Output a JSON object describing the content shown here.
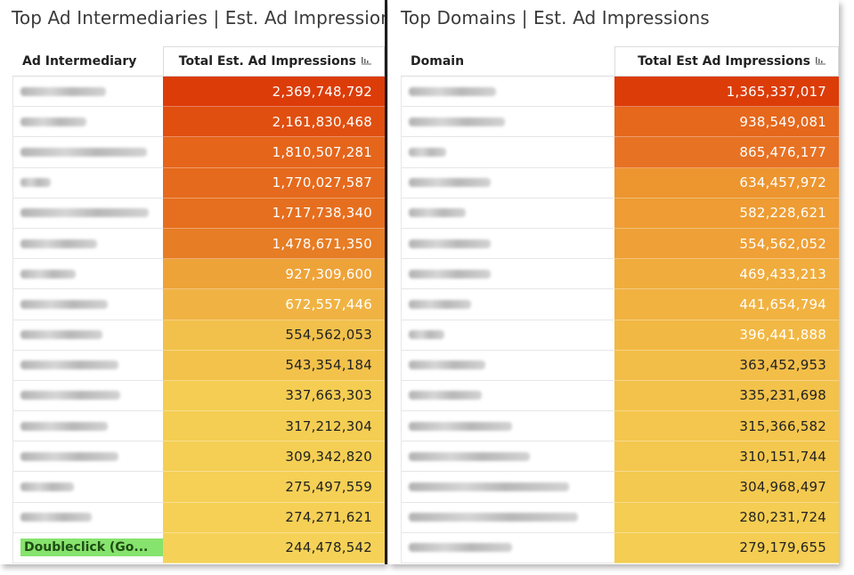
{
  "left_panel": {
    "title": "Top Ad Intermediaries | Est. Ad Impressions",
    "col_name": "Ad Intermediary",
    "col_value": "Total Est. Ad Impressions",
    "rows": [
      {
        "name": "",
        "value": "2,369,748,792",
        "color": "#dc3c08",
        "text_color": "#ffffff"
      },
      {
        "name": "",
        "value": "2,161,830,468",
        "color": "#e04f10",
        "text_color": "#ffffff"
      },
      {
        "name": "",
        "value": "1,810,507,281",
        "color": "#e5651b",
        "text_color": "#ffffff"
      },
      {
        "name": "",
        "value": "1,770,027,587",
        "color": "#e56a1d",
        "text_color": "#ffffff"
      },
      {
        "name": "",
        "value": "1,717,738,340",
        "color": "#e66f1f",
        "text_color": "#ffffff"
      },
      {
        "name": "",
        "value": "1,478,671,350",
        "color": "#e77d25",
        "text_color": "#ffffff"
      },
      {
        "name": "",
        "value": "927,309,600",
        "color": "#eea339",
        "text_color": "#ffffff"
      },
      {
        "name": "",
        "value": "672,557,446",
        "color": "#f0b343",
        "text_color": "#ffffff"
      },
      {
        "name": "",
        "value": "554,562,053",
        "color": "#f2c14b",
        "text_color": "#222222"
      },
      {
        "name": "",
        "value": "543,354,184",
        "color": "#f2c24b",
        "text_color": "#222222"
      },
      {
        "name": "",
        "value": "337,663,303",
        "color": "#f4cd52",
        "text_color": "#222222"
      },
      {
        "name": "",
        "value": "317,212,304",
        "color": "#f4ce53",
        "text_color": "#222222"
      },
      {
        "name": "",
        "value": "309,342,820",
        "color": "#f4cf53",
        "text_color": "#222222"
      },
      {
        "name": "",
        "value": "275,497,559",
        "color": "#f5d055",
        "text_color": "#222222"
      },
      {
        "name": "",
        "value": "274,271,621",
        "color": "#f5d055",
        "text_color": "#222222"
      },
      {
        "name": "Doubleclick (Go...",
        "value": "244,478,542",
        "color": "#f5d257",
        "text_color": "#222222"
      }
    ]
  },
  "right_panel": {
    "title": "Top Domains | Est. Ad Impressions",
    "col_name": "Domain",
    "col_value": "Total Est Ad Impressions",
    "rows": [
      {
        "name": "",
        "value": "1,365,337,017",
        "color": "#dc3c08",
        "text_color": "#ffffff"
      },
      {
        "name": "",
        "value": "938,549,081",
        "color": "#e5681c",
        "text_color": "#ffffff"
      },
      {
        "name": "",
        "value": "865,476,177",
        "color": "#e77224",
        "text_color": "#ffffff"
      },
      {
        "name": "",
        "value": "634,457,972",
        "color": "#ed952f",
        "text_color": "#ffffff"
      },
      {
        "name": "",
        "value": "582,228,621",
        "color": "#ee9c33",
        "text_color": "#ffffff"
      },
      {
        "name": "",
        "value": "554,562,052",
        "color": "#efa036",
        "text_color": "#ffffff"
      },
      {
        "name": "",
        "value": "469,433,213",
        "color": "#f0ac3c",
        "text_color": "#ffffff"
      },
      {
        "name": "",
        "value": "441,654,794",
        "color": "#f1b240",
        "text_color": "#ffffff"
      },
      {
        "name": "",
        "value": "396,441,888",
        "color": "#f2b844",
        "text_color": "#ffffff"
      },
      {
        "name": "",
        "value": "363,452,953",
        "color": "#f3be48",
        "text_color": "#222222"
      },
      {
        "name": "",
        "value": "335,231,698",
        "color": "#f3c24b",
        "text_color": "#222222"
      },
      {
        "name": "",
        "value": "315,366,582",
        "color": "#f4c64d",
        "text_color": "#222222"
      },
      {
        "name": "",
        "value": "310,151,744",
        "color": "#f4c84f",
        "text_color": "#222222"
      },
      {
        "name": "",
        "value": "304,968,497",
        "color": "#f4c94f",
        "text_color": "#222222"
      },
      {
        "name": "",
        "value": "280,231,724",
        "color": "#f4cd52",
        "text_color": "#222222"
      },
      {
        "name": "",
        "value": "279,179,655",
        "color": "#f4cd52",
        "text_color": "#222222"
      }
    ]
  }
}
